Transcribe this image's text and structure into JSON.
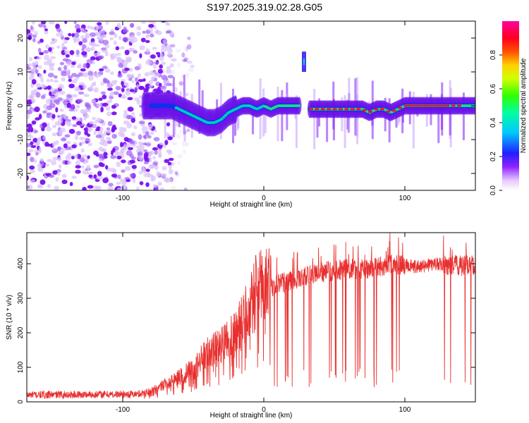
{
  "title": "S197.2025.319.02.28.G05",
  "chart_data": [
    {
      "type": "heatmap",
      "name": "spectrogram",
      "xlabel": "Height of straight line (km)",
      "ylabel": "Frequency (Hz)",
      "xlim": [
        -168,
        150
      ],
      "ylim": [
        -25,
        25
      ],
      "xticks": [
        -100,
        0,
        100
      ],
      "xtick_labels": [
        "-100",
        "0",
        "100"
      ],
      "yticks": [
        -20,
        -10,
        0,
        10,
        20
      ],
      "ytick_labels": [
        "-20",
        "-10",
        "0",
        "10",
        "20"
      ],
      "colorbar": {
        "label": "Normalized spectral amplitude",
        "range": [
          0.0,
          1.0
        ],
        "ticks": [
          0.0,
          0.2,
          0.4,
          0.6,
          0.8
        ],
        "tick_labels": [
          "0.0",
          "0.2",
          "0.4",
          "0.6",
          "0.8"
        ]
      },
      "features": {
        "noise_region_x": [
          -168,
          -65
        ],
        "main_trace": {
          "x": [
            -85,
            -75,
            -65,
            -60,
            -55,
            -50,
            -45,
            -40,
            -35,
            -30,
            -25,
            -20,
            -15,
            -10,
            -5,
            0,
            5,
            10,
            15,
            20,
            25,
            32,
            40,
            50,
            60,
            70,
            75,
            80,
            85,
            90,
            95,
            100,
            110,
            120,
            130,
            140,
            150
          ],
          "y": [
            0,
            0,
            0,
            -1,
            -2,
            -3,
            -4,
            -5,
            -5,
            -4,
            -2,
            -1,
            0,
            0,
            -1,
            0,
            -1,
            0,
            0,
            0,
            0,
            -1,
            -1,
            -1,
            -1,
            -1,
            -2,
            -1,
            -1,
            -2,
            -1,
            0,
            0,
            0,
            0,
            0,
            0
          ]
        },
        "secondary_trace": {
          "x": [
            27,
            30
          ],
          "y": 13
        }
      }
    },
    {
      "type": "line",
      "name": "snr",
      "xlabel": "Height of straight line (km)",
      "ylabel": "SNR (10 * v/v)",
      "xlim": [
        -168,
        150
      ],
      "ylim": [
        0,
        490
      ],
      "xticks": [
        -100,
        0,
        100
      ],
      "xtick_labels": [
        "-100",
        "0",
        "100"
      ],
      "yticks": [
        0,
        100,
        200,
        300,
        400
      ],
      "ytick_labels": [
        "0",
        "100",
        "200",
        "300",
        "400"
      ],
      "color": "#e8302f",
      "baseline": {
        "x": [
          -168,
          -90,
          -80,
          -70,
          -60,
          -50,
          -40,
          -30,
          -25,
          -20,
          -15,
          -10,
          -5,
          0,
          5,
          10,
          20,
          30,
          40,
          50,
          60,
          70,
          80,
          90,
          100,
          110,
          120,
          130,
          140,
          150
        ],
        "y": [
          20,
          22,
          30,
          50,
          70,
          95,
          140,
          160,
          175,
          200,
          230,
          280,
          320,
          330,
          330,
          340,
          350,
          365,
          375,
          380,
          385,
          385,
          390,
          400,
          395,
          390,
          400,
          395,
          395,
          395
        ]
      }
    }
  ]
}
